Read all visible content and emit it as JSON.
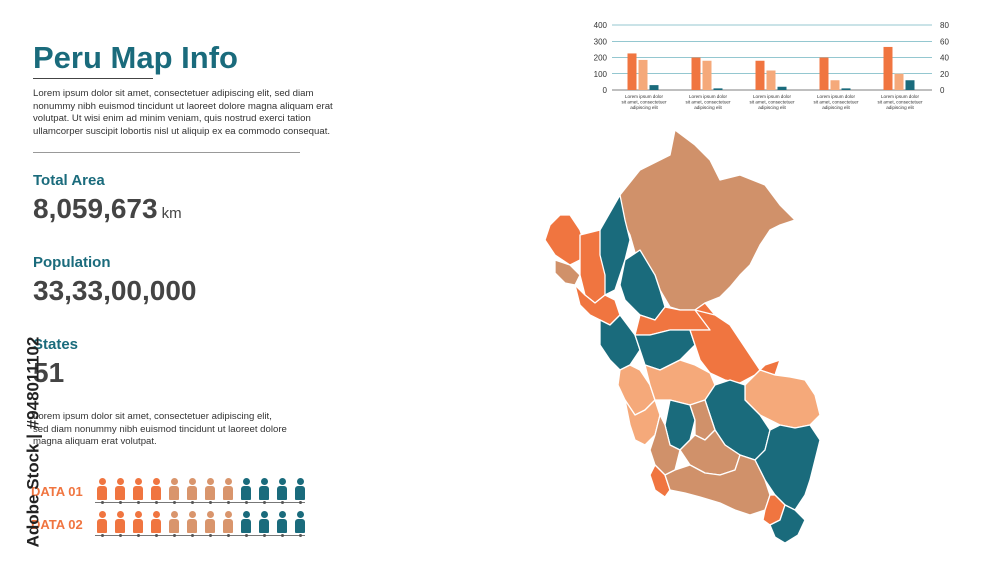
{
  "title": "Peru Map Info",
  "intro_text": "Lorem ipsum dolor sit amet, consectetuer adipiscing elit, sed diam nonummy nibh euismod tincidunt ut laoreet dolore magna aliquam erat volutpat. Ut wisi enim ad minim veniam, quis nostrud exerci tation ullamcorper suscipit lobortis nisl ut aliquip ex ea commodo consequat.",
  "stats": {
    "area_label": "Total Area",
    "area_value": "8,059,673",
    "area_unit": "km",
    "population_label": "Population",
    "population_value": "33,33,00,000",
    "states_label": "States",
    "states_value": "51"
  },
  "secondary_text": "Lorem ipsum dolor sit amet, consectetuer adipiscing elit, sed diam nonummy nibh euismod tincidunt ut laoreet dolore magna aliquam erat volutpat.",
  "data_rows": [
    {
      "label": "DATA 01",
      "colors": [
        "#f07540",
        "#f07540",
        "#f07540",
        "#f07540",
        "#d9956c",
        "#d9956c",
        "#d9956c",
        "#d9956c",
        "#1a6b7c",
        "#1a6b7c",
        "#1a6b7c",
        "#1a6b7c"
      ]
    },
    {
      "label": "DATA 02",
      "colors": [
        "#f07540",
        "#f07540",
        "#f07540",
        "#f07540",
        "#d9956c",
        "#d9956c",
        "#d9956c",
        "#d9956c",
        "#1a6b7c",
        "#1a6b7c",
        "#1a6b7c",
        "#1a6b7c"
      ]
    }
  ],
  "watermark": "Adobe Stock | #948011102",
  "chart_data": {
    "type": "bar",
    "categories": [
      "Lorem ipsum dolor sit amet, consectetuer adipiscing elit",
      "Lorem ipsum dolor sit amet, consectetuer adipiscing elit",
      "Lorem ipsum dolor sit amet, consectetuer adipiscing elit",
      "Lorem ipsum dolor sit amet, consectetuer adipiscing elit",
      "Lorem ipsum dolor sit amet, consectetuer adipiscing elit"
    ],
    "series": [
      {
        "values": [
          225,
          200,
          180,
          200,
          265
        ],
        "color": "#f07540"
      },
      {
        "values": [
          185,
          180,
          120,
          60,
          100
        ],
        "color": "#f5a97a"
      },
      {
        "values": [
          30,
          10,
          20,
          10,
          60
        ],
        "color": "#1a6b7c"
      }
    ],
    "ylim_left": [
      0,
      400
    ],
    "yticks_left": [
      0,
      100,
      200,
      300,
      400
    ],
    "ylim_right": [
      0,
      80
    ],
    "yticks_right": [
      0,
      20,
      40,
      60,
      80
    ],
    "grid": true
  },
  "map_colors": {
    "orange": "#f07540",
    "tan": "#d0916a",
    "teal": "#1a6b7c",
    "light": "#f5a97a"
  }
}
